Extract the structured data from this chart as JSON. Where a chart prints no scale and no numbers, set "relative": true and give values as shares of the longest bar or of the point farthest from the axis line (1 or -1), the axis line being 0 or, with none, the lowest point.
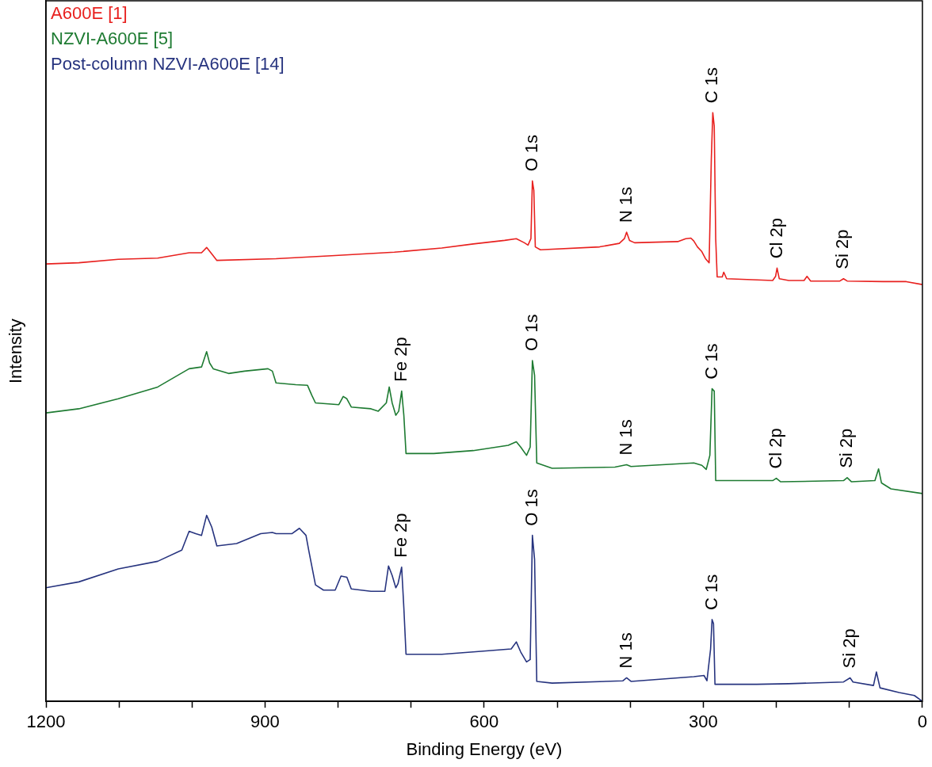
{
  "chart_data": {
    "type": "line",
    "relative": true,
    "xlabel": "Binding Energy (eV)",
    "ylabel": "Intensity",
    "xlim": [
      1200,
      0
    ],
    "xticks": [
      1200,
      {
        "value": 1100,
        "label": null
      },
      {
        "value": 1000,
        "label": null
      },
      900,
      {
        "value": 800,
        "label": null
      },
      {
        "value": 700,
        "label": null
      },
      600,
      {
        "value": 500,
        "label": null
      },
      {
        "value": 400,
        "label": null
      },
      300,
      {
        "value": 200,
        "label": null
      },
      {
        "value": 100,
        "label": null
      },
      0
    ],
    "legend": "top left",
    "grid": false,
    "marker": "none",
    "line_style": "solid",
    "series": [
      {
        "name": "A600E [1]",
        "color": "#e8211f",
        "x": [
          1200,
          1155,
          1101,
          1047,
          1004,
          987,
          980,
          971,
          966,
          885,
          809,
          723,
          658,
          615,
          572,
          556,
          545,
          540,
          536,
          534,
          532,
          530,
          523,
          442,
          415,
          408,
          405,
          401,
          394,
          335,
          324,
          317,
          313,
          308,
          302,
          297,
          292,
          289,
          287,
          285,
          283,
          281,
          274,
          272,
          268,
          205,
          201,
          199,
          196,
          183,
          162,
          158,
          153,
          113,
          108,
          103,
          54,
          22,
          0
        ],
        "values": [
          0.743,
          0.745,
          0.751,
          0.753,
          0.762,
          0.762,
          0.771,
          0.757,
          0.749,
          0.752,
          0.757,
          0.763,
          0.77,
          0.777,
          0.783,
          0.786,
          0.779,
          0.775,
          0.786,
          0.884,
          0.868,
          0.772,
          0.767,
          0.772,
          0.778,
          0.786,
          0.797,
          0.783,
          0.779,
          0.781,
          0.786,
          0.787,
          0.782,
          0.772,
          0.764,
          0.752,
          0.745,
          0.922,
          1,
          0.977,
          0.786,
          0.721,
          0.721,
          0.729,
          0.718,
          0.715,
          0.722,
          0.736,
          0.718,
          0.715,
          0.715,
          0.722,
          0.714,
          0.714,
          0.718,
          0.714,
          0.713,
          0.713,
          0.708
        ]
      },
      {
        "name": "NZVI-A600E [5]",
        "color": "#1e7b32",
        "x": [
          1200,
          1155,
          1101,
          1047,
          1004,
          987,
          980,
          976,
          971,
          950,
          928,
          896,
          890,
          885,
          858,
          842,
          836,
          831,
          799,
          793,
          788,
          782,
          755,
          745,
          734,
          730,
          726,
          721,
          717,
          713,
          710,
          707,
          669,
          615,
          567,
          556,
          550,
          542,
          537,
          534,
          531,
          528,
          507,
          421,
          405,
          399,
          313,
          302,
          296,
          291,
          288,
          285,
          283,
          205,
          200,
          194,
          108,
          103,
          97,
          65,
          60,
          56,
          43,
          0
        ],
        "values": [
          0.49,
          0.497,
          0.514,
          0.534,
          0.565,
          0.568,
          0.594,
          0.575,
          0.565,
          0.557,
          0.561,
          0.565,
          0.561,
          0.541,
          0.538,
          0.537,
          0.52,
          0.507,
          0.504,
          0.518,
          0.514,
          0.5,
          0.497,
          0.493,
          0.507,
          0.534,
          0.507,
          0.486,
          0.493,
          0.527,
          0.486,
          0.421,
          0.421,
          0.426,
          0.435,
          0.441,
          0.432,
          0.418,
          0.432,
          0.579,
          0.554,
          0.405,
          0.396,
          0.398,
          0.402,
          0.399,
          0.405,
          0.401,
          0.394,
          0.418,
          0.531,
          0.527,
          0.375,
          0.375,
          0.379,
          0.373,
          0.375,
          0.38,
          0.373,
          0.375,
          0.395,
          0.371,
          0.361,
          0.353
        ]
      },
      {
        "name": "Post-column NZVI-A600E [14]",
        "color": "#27347f",
        "x": [
          1200,
          1155,
          1101,
          1047,
          1014,
          1004,
          995,
          987,
          980,
          973,
          966,
          939,
          906,
          890,
          885,
          863,
          853,
          844,
          840,
          831,
          820,
          804,
          796,
          788,
          782,
          755,
          736,
          731,
          726,
          721,
          718,
          713,
          710,
          707,
          658,
          615,
          563,
          556,
          550,
          542,
          537,
          534,
          531,
          528,
          507,
          410,
          405,
          399,
          313,
          299,
          295,
          290,
          288,
          286,
          284,
          227,
          183,
          108,
          99,
          95,
          67,
          63,
          58,
          32,
          11,
          0
        ],
        "values": [
          0.193,
          0.203,
          0.225,
          0.238,
          0.257,
          0.289,
          0.285,
          0.282,
          0.316,
          0.296,
          0.264,
          0.268,
          0.285,
          0.287,
          0.285,
          0.285,
          0.294,
          0.282,
          0.255,
          0.198,
          0.189,
          0.189,
          0.213,
          0.211,
          0.191,
          0.187,
          0.187,
          0.23,
          0.214,
          0.193,
          0.2,
          0.228,
          0.159,
          0.08,
          0.08,
          0.084,
          0.089,
          0.101,
          0.084,
          0.067,
          0.071,
          0.282,
          0.241,
          0.034,
          0.031,
          0.035,
          0.04,
          0.034,
          0.042,
          0.044,
          0.035,
          0.089,
          0.139,
          0.132,
          0.029,
          0.029,
          0.03,
          0.033,
          0.04,
          0.033,
          0.027,
          0.05,
          0.023,
          0.015,
          0.01,
          0
        ]
      }
    ],
    "annotations": [
      {
        "text": "O 1s",
        "x": 534,
        "y": 0.884
      },
      {
        "text": "N 1s",
        "x": 405,
        "y": 0.797
      },
      {
        "text": "C 1s",
        "x": 287,
        "y": 1
      },
      {
        "text": "Cl 2p",
        "x": 199,
        "y": 0.736
      },
      {
        "text": "Si 2p",
        "x": 108,
        "y": 0.718
      },
      {
        "text": "Fe 2p",
        "x": 713,
        "y": 0.527
      },
      {
        "text": "O 1s",
        "x": 534,
        "y": 0.579
      },
      {
        "text": "N 1s",
        "x": 405,
        "y": 0.402
      },
      {
        "text": "C 1s",
        "x": 288,
        "y": 0.531
      },
      {
        "text": "Cl 2p",
        "x": 200,
        "y": 0.379
      },
      {
        "text": "Si 2p",
        "x": 103,
        "y": 0.38
      },
      {
        "text": "Fe 2p",
        "x": 713,
        "y": 0.228
      },
      {
        "text": "O 1s",
        "x": 534,
        "y": 0.282
      },
      {
        "text": "N 1s",
        "x": 405,
        "y": 0.04
      },
      {
        "text": "C 1s",
        "x": 288,
        "y": 0.139
      },
      {
        "text": "Si 2p",
        "x": 99,
        "y": 0.04
      }
    ]
  }
}
